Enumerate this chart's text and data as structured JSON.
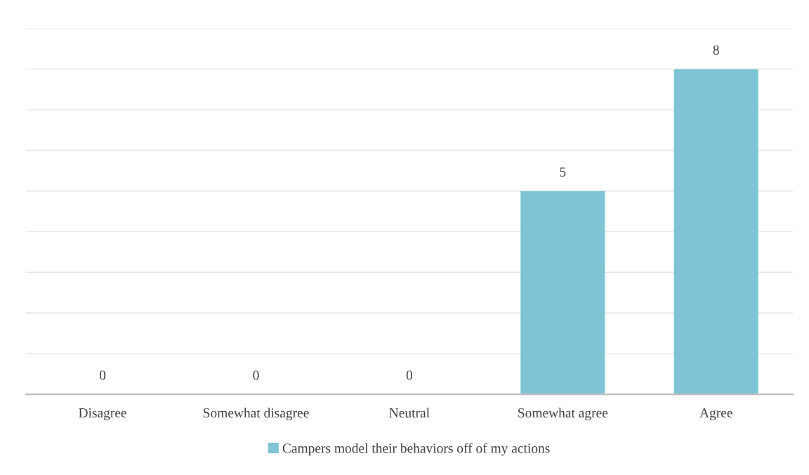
{
  "chart_data": {
    "type": "bar",
    "categories": [
      "Disagree",
      "Somewhat disagree",
      "Neutral",
      "Somewhat agree",
      "Agree"
    ],
    "series": [
      {
        "name": "Campers model their behaviors off of my actions",
        "color": "#7fc4d4",
        "values": [
          0,
          0,
          0,
          5,
          8
        ]
      }
    ],
    "ylim": [
      0,
      9
    ],
    "yticks": [
      {
        "value": 0,
        "label": null
      },
      {
        "value": 1,
        "label": null
      },
      {
        "value": 2,
        "label": null
      },
      {
        "value": 3,
        "label": null
      },
      {
        "value": 4,
        "label": null
      },
      {
        "value": 5,
        "label": null
      },
      {
        "value": 6,
        "label": null
      },
      {
        "value": 7,
        "label": null
      },
      {
        "value": 8,
        "label": null
      },
      {
        "value": 9,
        "label": null
      }
    ],
    "tick_labels": "x",
    "grid": "y",
    "legend": "bottom",
    "data_labels": true
  }
}
